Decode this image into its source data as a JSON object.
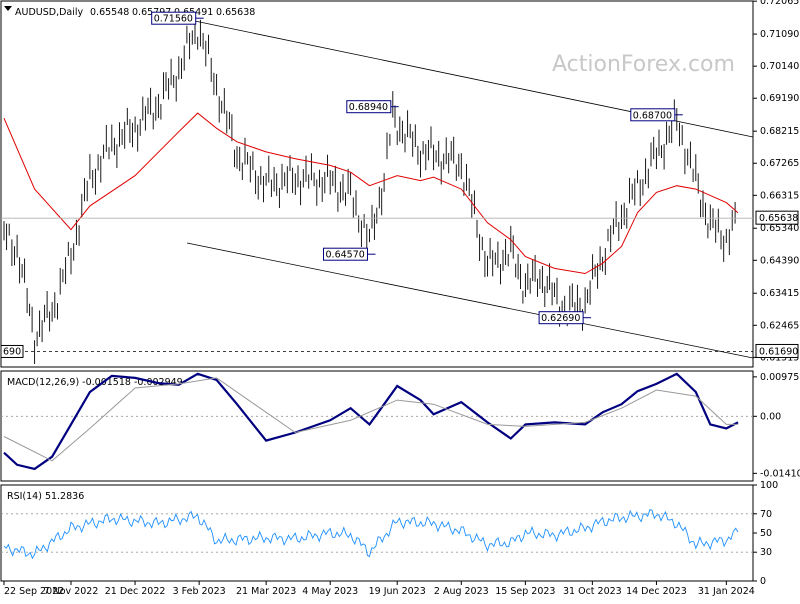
{
  "chart_data": [
    {
      "type": "line",
      "panel": "price",
      "title": "AUDUSD,Daily",
      "ohlc_readout": [
        "0.65548",
        "0.65797",
        "0.65491",
        "0.65638"
      ],
      "watermark": "ActionForex.com",
      "ylim": [
        0.6123,
        0.7207
      ],
      "y_ticks": [
        "0.72065",
        "0.71090",
        "0.70140",
        "0.69190",
        "0.68215",
        "0.67265",
        "0.66315",
        "0.65340",
        "0.64390",
        "0.63415",
        "0.62465",
        "0.61515"
      ],
      "x_tick_labels": [
        "22 Sep 2022",
        "7 Nov 2022",
        "21 Dec 2022",
        "3 Feb 2023",
        "21 Mar 2023",
        "4 May 2023",
        "19 Jun 2023",
        "2 Aug 2023",
        "15 Sep 2023",
        "31 Oct 2023",
        "14 Dec 2023",
        "31 Jan 2024"
      ],
      "current_price": {
        "label": "0.65638",
        "value": 0.65638
      },
      "support_line": {
        "label": "0.61690",
        "value": 0.6169,
        "left_label": "690"
      },
      "annotations": [
        {
          "label": "0.71560",
          "date": "2023-02-02",
          "value": 0.7156
        },
        {
          "label": "0.68940",
          "date": "2023-06-16",
          "value": 0.6894
        },
        {
          "label": "0.64570",
          "date": "2023-05-31",
          "value": 0.6457
        },
        {
          "label": "0.62690",
          "date": "2023-10-26",
          "value": 0.6269
        },
        {
          "label": "0.68700",
          "date": "2023-12-28",
          "value": 0.687
        }
      ],
      "series": [
        {
          "type": "bar",
          "x": [
            "2022-09-22",
            "2022-10-01",
            "2022-10-13",
            "2022-10-25",
            "2022-11-07",
            "2022-11-20",
            "2022-12-05",
            "2022-12-21",
            "2023-01-06",
            "2023-01-20",
            "2023-02-02",
            "2023-02-15",
            "2023-03-01",
            "2023-03-21",
            "2023-04-10",
            "2023-05-04",
            "2023-05-18",
            "2023-05-31",
            "2023-06-10",
            "2023-06-16",
            "2023-06-19",
            "2023-07-05",
            "2023-07-14",
            "2023-08-02",
            "2023-08-20",
            "2023-09-05",
            "2023-09-15",
            "2023-09-25",
            "2023-10-05",
            "2023-10-12",
            "2023-10-26",
            "2023-11-07",
            "2023-11-20",
            "2023-12-01",
            "2023-12-14",
            "2023-12-28",
            "2024-01-10",
            "2024-01-20",
            "2024-01-31",
            "2024-02-08"
          ],
          "values": [
            0.651,
            0.647,
            0.621,
            0.6285,
            0.645,
            0.668,
            0.678,
            0.683,
            0.69,
            0.7,
            0.713,
            0.695,
            0.675,
            0.666,
            0.668,
            0.667,
            0.663,
            0.649,
            0.668,
            0.686,
            0.684,
            0.676,
            0.675,
            0.672,
            0.642,
            0.646,
            0.636,
            0.639,
            0.633,
            0.629,
            0.631,
            0.645,
            0.657,
            0.665,
            0.675,
            0.685,
            0.667,
            0.654,
            0.65,
            0.656
          ]
        },
        {
          "name": "",
          "type": "line",
          "color": "#e00000",
          "x": [
            "2022-09-22",
            "2022-10-13",
            "2022-11-07",
            "2022-11-20",
            "2022-12-21",
            "2023-01-20",
            "2023-02-02",
            "2023-02-15",
            "2023-03-01",
            "2023-03-21",
            "2023-04-10",
            "2023-05-04",
            "2023-05-18",
            "2023-05-31",
            "2023-06-19",
            "2023-07-05",
            "2023-07-14",
            "2023-08-02",
            "2023-08-20",
            "2023-09-05",
            "2023-09-15",
            "2023-10-05",
            "2023-10-26",
            "2023-11-07",
            "2023-11-20",
            "2023-12-01",
            "2023-12-14",
            "2023-12-28",
            "2024-01-10",
            "2024-01-31",
            "2024-02-08"
          ],
          "values": [
            0.686,
            0.665,
            0.653,
            0.66,
            0.669,
            0.682,
            0.6875,
            0.683,
            0.679,
            0.676,
            0.674,
            0.672,
            0.67,
            0.666,
            0.669,
            0.6675,
            0.6685,
            0.665,
            0.655,
            0.65,
            0.645,
            0.6415,
            0.64,
            0.643,
            0.648,
            0.658,
            0.664,
            0.666,
            0.665,
            0.661,
            0.658
          ]
        }
      ]
    },
    {
      "type": "line",
      "panel": "macd",
      "title": "MACD(12,26,9) -0.001518 -0.002949",
      "ylim": [
        -0.016,
        0.0112
      ],
      "y_ticks": [
        "0.009751",
        "0.00",
        "-0.014107"
      ],
      "series": [
        {
          "name": "",
          "color": "#000080",
          "x": [
            "2022-09-22",
            "2022-10-01",
            "2022-10-13",
            "2022-10-25",
            "2022-11-07",
            "2022-11-20",
            "2022-12-05",
            "2022-12-21",
            "2023-01-06",
            "2023-01-20",
            "2023-02-02",
            "2023-02-15",
            "2023-03-01",
            "2023-03-21",
            "2023-04-10",
            "2023-05-04",
            "2023-05-18",
            "2023-05-31",
            "2023-06-10",
            "2023-06-19",
            "2023-07-05",
            "2023-07-14",
            "2023-08-02",
            "2023-08-20",
            "2023-09-05",
            "2023-09-15",
            "2023-10-05",
            "2023-10-26",
            "2023-11-07",
            "2023-11-20",
            "2023-12-01",
            "2023-12-14",
            "2023-12-28",
            "2024-01-10",
            "2024-01-20",
            "2024-01-31",
            "2024-02-08"
          ],
          "values": [
            -0.009,
            -0.012,
            -0.013,
            -0.01,
            -0.002,
            0.006,
            0.01,
            0.0095,
            0.0082,
            0.0078,
            0.0105,
            0.009,
            0.003,
            -0.006,
            -0.004,
            -0.001,
            0.002,
            -0.002,
            0.003,
            0.0075,
            0.004,
            0.0005,
            0.0035,
            -0.0015,
            -0.0055,
            -0.002,
            -0.0015,
            -0.002,
            0.001,
            0.003,
            0.0062,
            0.008,
            0.0105,
            0.006,
            -0.002,
            -0.003,
            -0.0015
          ]
        },
        {
          "name": "",
          "color": "#999999",
          "x": [
            "2022-09-22",
            "2022-10-25",
            "2022-11-20",
            "2022-12-21",
            "2023-01-20",
            "2023-02-15",
            "2023-03-21",
            "2023-04-10",
            "2023-05-18",
            "2023-06-19",
            "2023-07-14",
            "2023-08-20",
            "2023-09-15",
            "2023-10-26",
            "2023-11-20",
            "2023-12-14",
            "2024-01-10",
            "2024-01-31",
            "2024-02-08"
          ],
          "values": [
            -0.005,
            -0.011,
            -0.003,
            0.007,
            0.008,
            0.0095,
            0.001,
            -0.004,
            -0.001,
            0.004,
            0.003,
            -0.002,
            -0.0025,
            -0.0015,
            0.002,
            0.0065,
            0.005,
            -0.002,
            -0.002
          ]
        }
      ]
    },
    {
      "type": "line",
      "panel": "rsi",
      "title": "RSI(14) 51.2836",
      "ylim": [
        0,
        100
      ],
      "y_ticks": [
        "100",
        "70",
        "50",
        "30",
        "0"
      ],
      "series": [
        {
          "name": "",
          "color": "#1e90ff",
          "x": [
            "2022-09-22",
            "2022-10-13",
            "2022-11-07",
            "2022-12-05",
            "2023-01-06",
            "2023-02-02",
            "2023-02-15",
            "2023-03-21",
            "2023-04-10",
            "2023-05-04",
            "2023-05-18",
            "2023-05-31",
            "2023-06-19",
            "2023-07-14",
            "2023-08-02",
            "2023-08-20",
            "2023-09-05",
            "2023-09-15",
            "2023-10-05",
            "2023-10-26",
            "2023-11-07",
            "2023-11-20",
            "2023-12-14",
            "2023-12-28",
            "2024-01-10",
            "2024-01-20",
            "2024-01-31",
            "2024-02-08"
          ],
          "values": [
            35,
            28,
            55,
            65,
            60,
            68,
            42,
            45,
            44,
            50,
            48,
            30,
            62,
            60,
            52,
            38,
            40,
            50,
            48,
            55,
            62,
            66,
            70,
            60,
            38,
            40,
            43,
            51
          ]
        }
      ]
    }
  ]
}
